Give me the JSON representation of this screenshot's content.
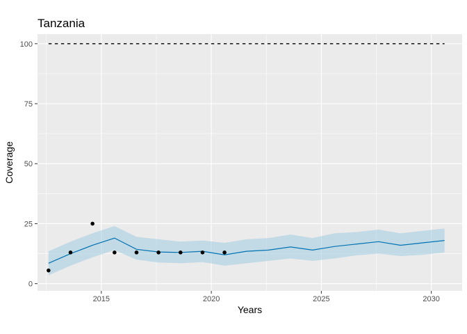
{
  "chart_data": {
    "type": "line",
    "title": "Tanzania",
    "xlabel": "Years",
    "ylabel": "Coverage",
    "xlim": [
      2012.1,
      2031.4
    ],
    "ylim": [
      -3,
      104
    ],
    "x_ticks": [
      2015,
      2020,
      2025,
      2030
    ],
    "x_tick_labels": [
      "2015",
      "2020",
      "2025",
      "2030"
    ],
    "y_ticks": [
      0,
      25,
      50,
      75,
      100
    ],
    "y_tick_labels": [
      "0",
      "25",
      "50",
      "75",
      "100"
    ],
    "grid": true,
    "colors": {
      "panel_background": "#ebebeb",
      "grid": "#ffffff",
      "line": "#0072b2",
      "ribbon": "#a6cee3",
      "points": "#000000",
      "target": "#000000"
    },
    "target_line": {
      "y": 100,
      "x_start": 2012.6,
      "x_end": 2030.6,
      "style": "dashed"
    },
    "series": [
      {
        "type": "line_with_ribbon",
        "x": [
          2012.6,
          2013.6,
          2014.6,
          2015.6,
          2016.6,
          2017.6,
          2018.6,
          2019.6,
          2020.6,
          2021.6,
          2022.6,
          2023.6,
          2024.6,
          2025.6,
          2026.6,
          2027.6,
          2028.6,
          2029.6,
          2030.6
        ],
        "values": [
          8.5,
          12.5,
          16,
          19,
          14.3,
          13.2,
          13,
          13.5,
          12,
          13.5,
          14,
          15.3,
          14,
          15.5,
          16.5,
          17.5,
          16,
          17,
          18
        ],
        "lower": [
          3.5,
          7.5,
          11,
          14,
          10,
          8.8,
          8.5,
          9,
          7.5,
          8.5,
          9.5,
          10.5,
          9.5,
          10.5,
          11.8,
          12.5,
          11.5,
          12,
          13
        ],
        "upper": [
          13.5,
          17.5,
          21,
          24,
          19.5,
          18.5,
          17.5,
          18,
          17,
          18.5,
          19,
          20.5,
          19,
          21,
          21.5,
          22.5,
          21,
          22,
          23
        ]
      },
      {
        "type": "scatter",
        "x": [
          2012.6,
          2013.6,
          2014.6,
          2015.6,
          2016.6,
          2017.6,
          2018.6,
          2019.6,
          2020.6
        ],
        "values": [
          5.5,
          13,
          25,
          13,
          13,
          13,
          13,
          13,
          13
        ]
      }
    ]
  }
}
